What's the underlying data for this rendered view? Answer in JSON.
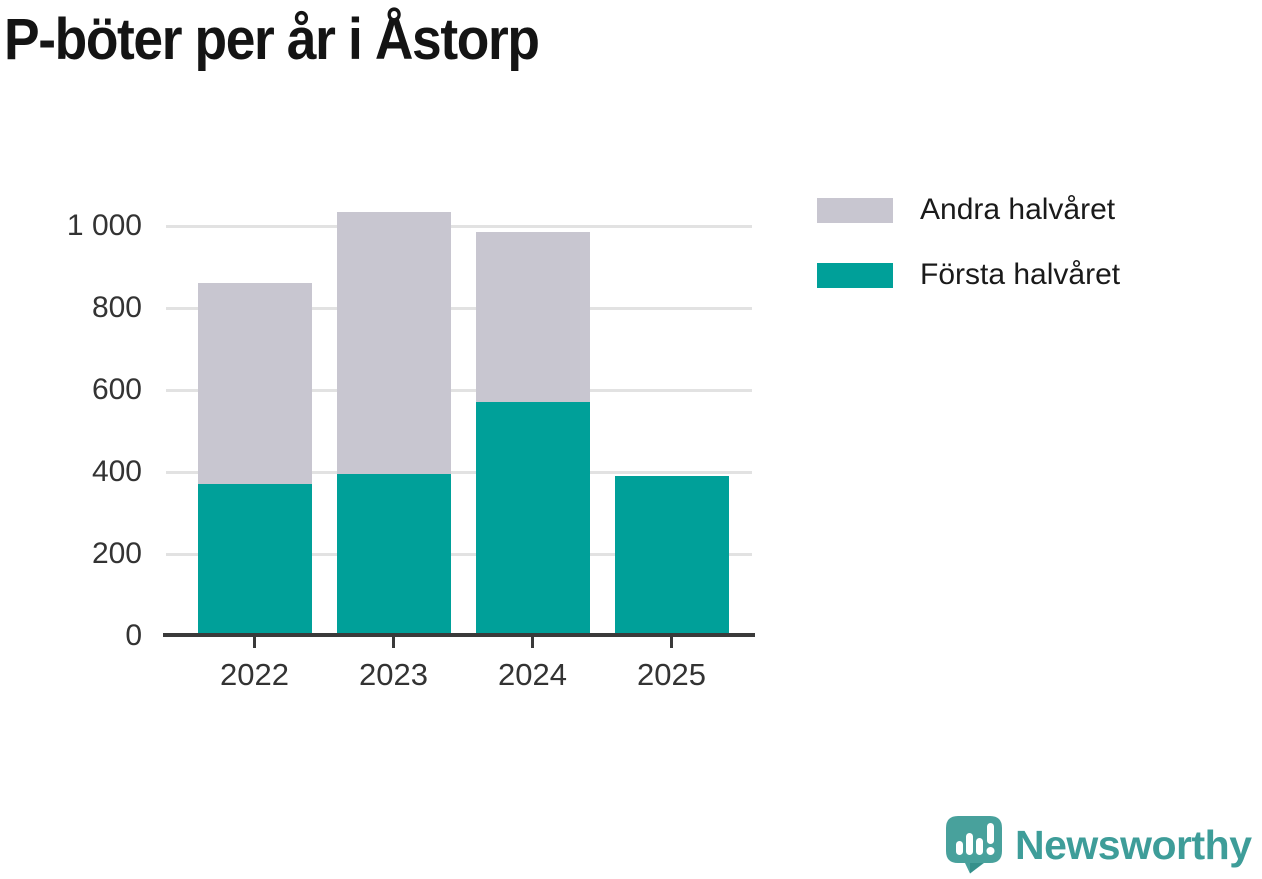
{
  "page": {
    "title": "P-böter per år i Åstorp"
  },
  "chart_data": {
    "type": "bar",
    "stacked": true,
    "title": "P-böter per år i Åstorp",
    "categories": [
      "2022",
      "2023",
      "2024",
      "2025"
    ],
    "series": [
      {
        "name": "Första halvåret",
        "color": "#00a099",
        "values": [
          370,
          395,
          570,
          390
        ]
      },
      {
        "name": "Andra halvåret",
        "color": "#c8c6d0",
        "values": [
          490,
          640,
          415,
          0
        ]
      }
    ],
    "xlabel": "",
    "ylabel": "",
    "ylim": [
      0,
      1000
    ],
    "ytick_step": 200,
    "ytick_labels": [
      "0",
      "200",
      "400",
      "600",
      "800",
      "1 000"
    ],
    "grid": "horizontal",
    "legend_position": "right"
  },
  "legend": {
    "items": [
      {
        "label": "Andra halvåret",
        "color": "#c8c6d0"
      },
      {
        "label": "Första halvåret",
        "color": "#00a099"
      }
    ]
  },
  "footer": {
    "brand": "Newsworthy",
    "logo_icon": "newsworthy-speech-bubble-bar-chart-icon"
  },
  "colors": {
    "first_half_bar": "#00a099",
    "second_half_bar": "#c8c6d0",
    "gridline": "#e2e2e2",
    "axis_line": "#3a3a3a",
    "axis_text": "#333333",
    "title_text": "#141414",
    "brand_teal": "#3e9d99",
    "background": "#ffffff"
  }
}
